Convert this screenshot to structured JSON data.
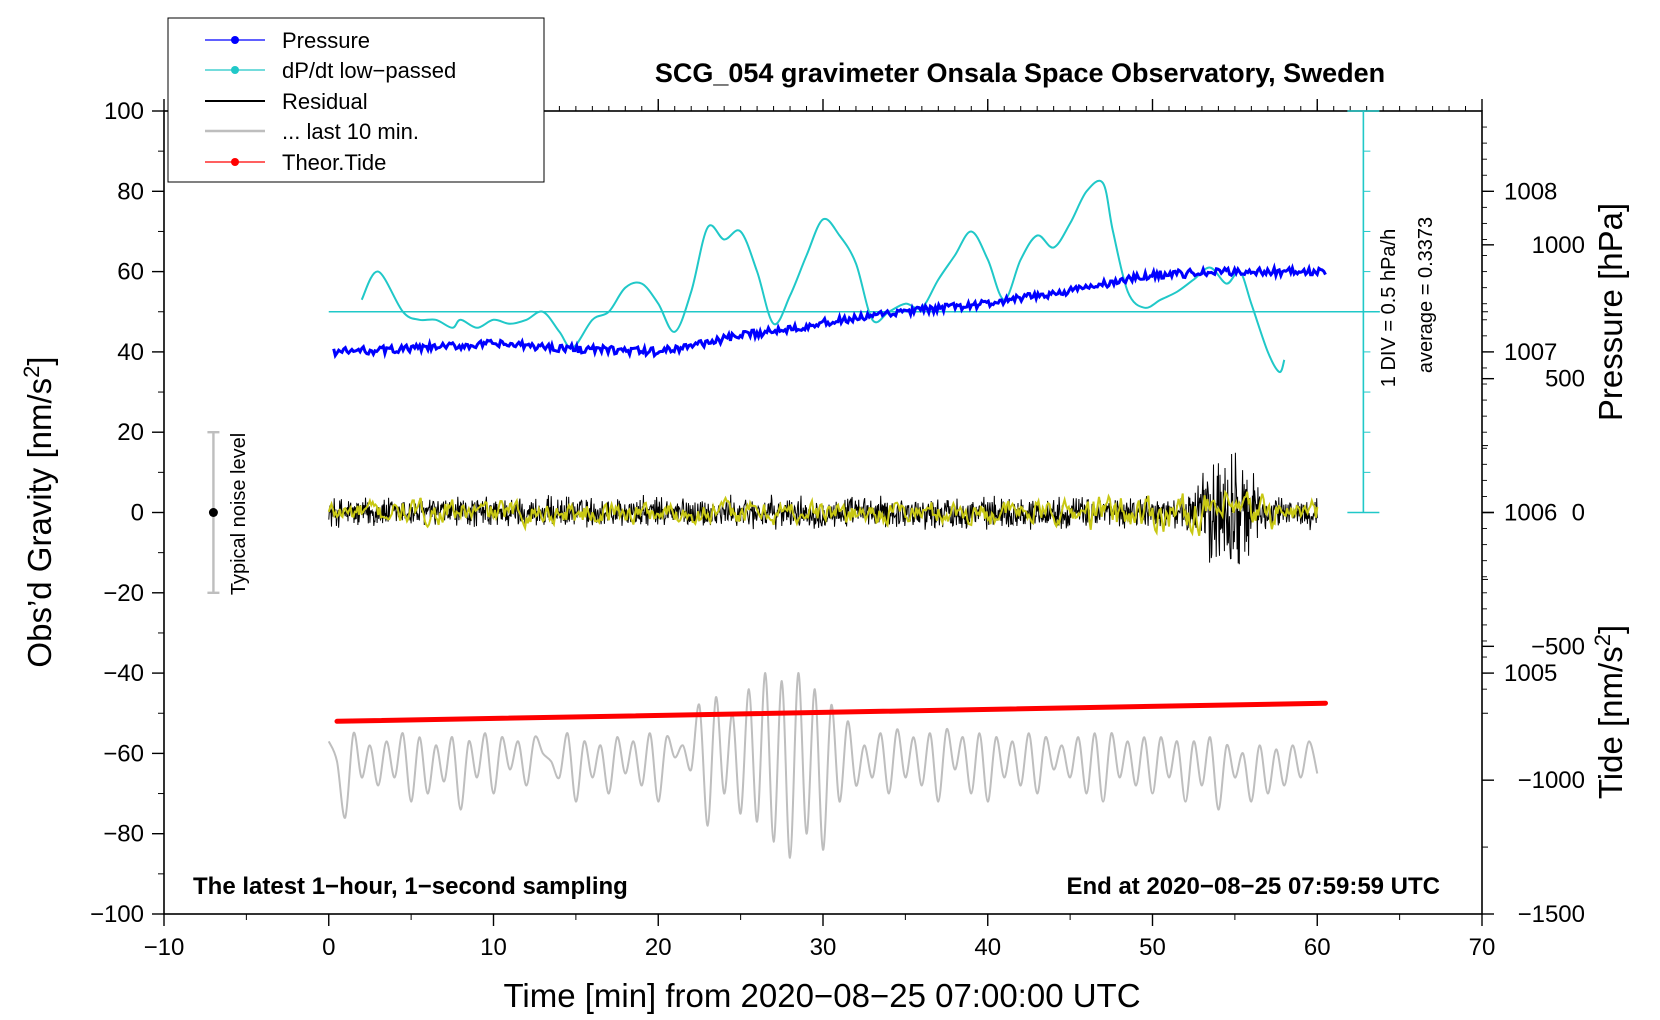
{
  "chart_data": {
    "type": "line",
    "title": "SCG_054 gravimeter Onsala Space Observatory, Sweden",
    "xlabel": "Time [min] from 2020−08−25 07:00:00 UTC",
    "ylabel_left_main": "Obs’d Gravity [nm/s",
    "ylabel_left_sup": "2",
    "ylabel_left_end": "]",
    "ylabel_right_pressure": "Pressure [hPa]",
    "ylabel_right_tide_main": "Tide [nm/s",
    "ylabel_right_tide_sup": "2",
    "ylabel_right_tide_end": "]",
    "xlim": [
      -10,
      70
    ],
    "ylim": [
      -100,
      100
    ],
    "pressure_lim": [
      1003.5,
      1008.5
    ],
    "tide_lim": [
      -1500,
      1500
    ],
    "x_ticks": [
      -10,
      0,
      10,
      20,
      30,
      40,
      50,
      60,
      70
    ],
    "x_tick_labels": [
      "−10",
      "0",
      "10",
      "20",
      "30",
      "40",
      "50",
      "60",
      "70"
    ],
    "y_ticks": [
      100,
      80,
      60,
      40,
      20,
      0,
      -20,
      -40,
      -60,
      -80,
      -100
    ],
    "y_tick_labels": [
      "100",
      "80",
      "60",
      "40",
      "20",
      "0",
      "−20",
      "−40",
      "−60",
      "−80",
      "−100"
    ],
    "pressure_ticks": [
      1008,
      1007,
      1006,
      1005
    ],
    "pressure_tick_labels": [
      "1008",
      "1007",
      "1006",
      "1005"
    ],
    "tide_ticks": [
      1000,
      500,
      0,
      -500,
      -1000,
      -1500
    ],
    "tide_tick_labels": [
      "1000",
      "500",
      "0",
      "−500",
      "−1000",
      "−1500"
    ],
    "legend": [
      {
        "label": "Pressure",
        "color": "#0000ff",
        "marker": true
      },
      {
        "label": "dP/dt low−passed",
        "color": "#20c8c8",
        "marker": true
      },
      {
        "label": "Residual",
        "color": "#000000",
        "marker": false
      },
      {
        "label": "... last 10 min.",
        "color": "#bebebe",
        "marker": false
      },
      {
        "label": "Theor.Tide",
        "color": "#ff0000",
        "marker": true
      }
    ],
    "colors": {
      "pressure": "#0000ff",
      "dpdt": "#20c8c8",
      "residual": "#000000",
      "residual_smooth": "#c8c814",
      "last10": "#bebebe",
      "tide": "#ff0000",
      "noise": "#bebebe"
    },
    "series": [
      {
        "name": "Pressure",
        "axis": "pressure",
        "x": [
          0.3,
          5,
          10,
          15,
          20,
          25,
          30,
          35,
          40,
          45,
          50,
          55,
          60.5
        ],
        "y": [
          1007.0,
          1007.02,
          1007.05,
          1007.02,
          1007.0,
          1007.1,
          1007.18,
          1007.25,
          1007.3,
          1007.38,
          1007.48,
          1007.5,
          1007.5
        ]
      },
      {
        "name": "dP/dt low−passed",
        "axis": "gravity",
        "x": [
          2.0,
          3.0,
          4.5,
          5.5,
          6.5,
          7.5,
          8.0,
          9.0,
          10.0,
          11.0,
          12.0,
          13.0,
          14.0,
          14.8,
          16.0,
          17.0,
          18.0,
          19.0,
          20.0,
          21.0,
          22.0,
          23.0,
          24.0,
          25.0,
          26.0,
          27.0,
          28.0,
          29.0,
          30.0,
          31.0,
          32.0,
          33.0,
          34.0,
          35.0,
          36.0,
          37.0,
          38.0,
          39.0,
          40.0,
          41.0,
          42.0,
          43.0,
          44.0,
          45.0,
          46.0,
          47.0,
          47.6,
          48.5,
          49.5,
          50.5,
          51.5,
          52.5,
          53.5,
          54.5,
          55.3,
          56.0,
          57.0,
          57.7,
          58.0
        ],
        "y": [
          53,
          60,
          50,
          48,
          48,
          46,
          48,
          46,
          48,
          47,
          48,
          50,
          45,
          41,
          48,
          50,
          56,
          57,
          52,
          45,
          55,
          71,
          68,
          70,
          60,
          47,
          54,
          64,
          73,
          69,
          62,
          48,
          50,
          52,
          51,
          58,
          64,
          70,
          63,
          53,
          63,
          69,
          66,
          72,
          80,
          82,
          70,
          55,
          51,
          53,
          55,
          58,
          61,
          57,
          60,
          52,
          40,
          35,
          38
        ]
      },
      {
        "name": "Residual",
        "axis": "gravity",
        "x_start": 0,
        "x_end": 60,
        "baseline": 0,
        "noise_amplitude": 4.5,
        "burst": {
          "x_start": 52,
          "x_end": 57,
          "peak_amplitude": 20
        }
      },
      {
        "name": "... last 10 min.",
        "axis": "gravity",
        "x": [
          0.0,
          0.5,
          1.0,
          1.5,
          2.0,
          2.5,
          3.0,
          3.5,
          4.0,
          4.5,
          5.0,
          5.5,
          6.0,
          6.5,
          7.0,
          7.5,
          8.0,
          8.5,
          9.0,
          9.5,
          10.0,
          10.5,
          11.0,
          11.5,
          12.0,
          12.5,
          13.0,
          13.5,
          14.0,
          14.5,
          15.0,
          15.5,
          16.0,
          16.5,
          17.0,
          17.5,
          18.0,
          18.5,
          19.0,
          19.5,
          20.0,
          20.5,
          21.0,
          21.5,
          22.0,
          22.5,
          23.0,
          23.5,
          24.0,
          24.5,
          25.0,
          25.5,
          26.0,
          26.5,
          27.0,
          27.5,
          28.0,
          28.5,
          29.0,
          29.5,
          30.0,
          30.5,
          31.0,
          31.5,
          32.0,
          32.5,
          33.0,
          33.5,
          34.0,
          34.5,
          35.0,
          35.5,
          36.0,
          36.5,
          37.0,
          37.5,
          38.0,
          38.5,
          39.0,
          39.5,
          40.0,
          40.5,
          41.0,
          41.5,
          42.0,
          42.5,
          43.0,
          43.5,
          44.0,
          44.5,
          45.0,
          45.5,
          46.0,
          46.5,
          47.0,
          47.5,
          48.0,
          48.5,
          49.0,
          49.5,
          50.0,
          50.5,
          51.0,
          51.5,
          52.0,
          52.5,
          53.0,
          53.5,
          54.0,
          54.5,
          55.0,
          55.5,
          56.0,
          56.5,
          57.0,
          57.5,
          58.0,
          58.5,
          59.0,
          59.5,
          60.0
        ],
        "y": [
          -57,
          -62,
          -76,
          -55,
          -66,
          -58,
          -68,
          -57,
          -66,
          -55,
          -72,
          -56,
          -70,
          -58,
          -67,
          -56,
          -74,
          -57,
          -66,
          -55,
          -70,
          -56,
          -64,
          -57,
          -68,
          -56,
          -60,
          -62,
          -66,
          -55,
          -72,
          -57,
          -66,
          -58,
          -70,
          -56,
          -65,
          -57,
          -68,
          -55,
          -72,
          -56,
          -61,
          -58,
          -64,
          -48,
          -78,
          -46,
          -70,
          -50,
          -75,
          -44,
          -77,
          -40,
          -82,
          -42,
          -86,
          -40,
          -80,
          -44,
          -84,
          -48,
          -72,
          -52,
          -68,
          -58,
          -66,
          -55,
          -70,
          -54,
          -66,
          -56,
          -68,
          -55,
          -72,
          -54,
          -64,
          -56,
          -70,
          -55,
          -72,
          -56,
          -66,
          -57,
          -68,
          -55,
          -70,
          -56,
          -64,
          -58,
          -66,
          -56,
          -70,
          -55,
          -72,
          -55,
          -66,
          -57,
          -68,
          -56,
          -70,
          -56,
          -66,
          -57,
          -72,
          -57,
          -68,
          -56,
          -74,
          -58,
          -66,
          -60,
          -72,
          -58,
          -70,
          -59,
          -68,
          -58,
          -66,
          -57,
          -65
        ]
      },
      {
        "name": "Theor.Tide",
        "axis": "gravity",
        "x": [
          0.5,
          60.5
        ],
        "y": [
          -52,
          -47.5
        ]
      }
    ],
    "average_label": "average = 0.3373",
    "div_label": "1 DIV = 0.5 hPa/h",
    "noise_label": "Typical noise level",
    "note_left": "The latest 1−hour, 1−second sampling",
    "note_right": "End at 2020−08−25 07:59:59 UTC",
    "average_value": 50,
    "noise_range": [
      -20,
      20
    ],
    "legend_position": "top-left"
  }
}
